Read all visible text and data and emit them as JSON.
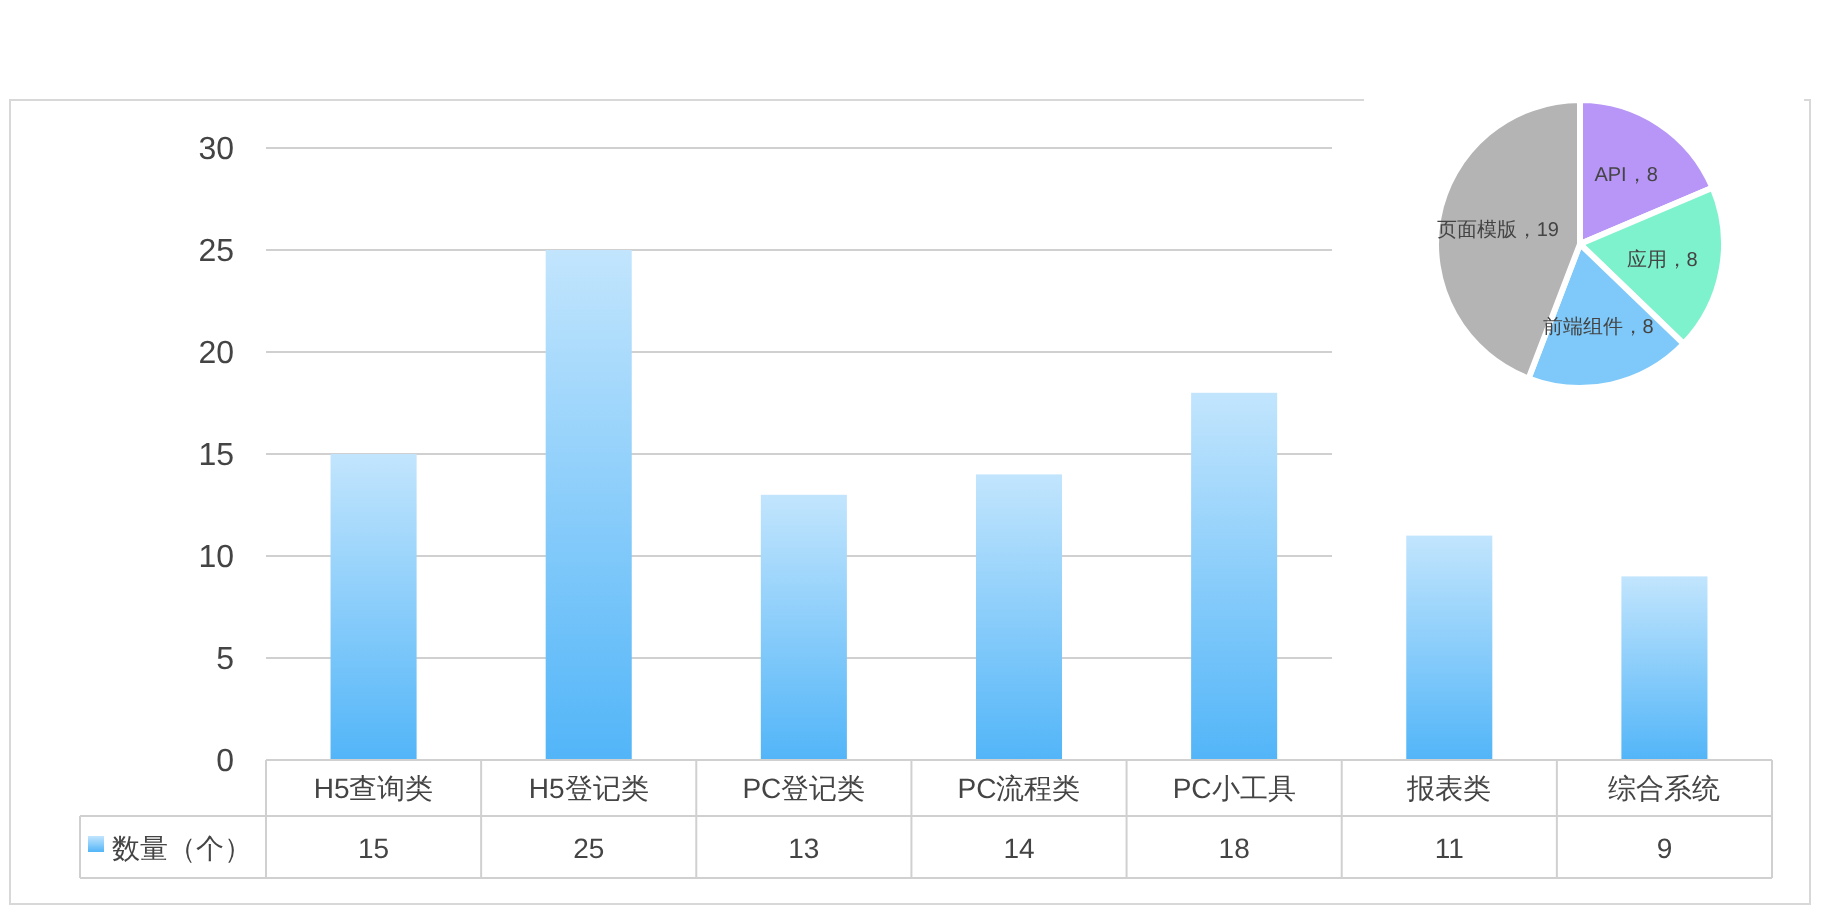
{
  "chart_data": [
    {
      "type": "bar",
      "categories": [
        "H5查询类",
        "H5登记类",
        "PC登记类",
        "PC流程类",
        "PC小工具",
        "报表类",
        "综合系统"
      ],
      "series": [
        {
          "name": "数量（个）",
          "color": "#52b5f8",
          "values": [
            15,
            25,
            13,
            14,
            18,
            11,
            9
          ]
        }
      ],
      "ylim": [
        0,
        30
      ],
      "yticks": [
        0,
        5,
        10,
        15,
        20,
        25,
        30
      ],
      "grid": "y",
      "legend": "bottom",
      "data_labels": true
    },
    {
      "type": "pie",
      "categories": [
        "API",
        "应用",
        "前端组件",
        "页面模版"
      ],
      "values": [
        8,
        8,
        8,
        19
      ],
      "colors": [
        "#b796f7",
        "#7ef2cc",
        "#7ec9f9",
        "#b4b4b4"
      ],
      "value_labels": [
        "，8",
        "，8",
        "，8",
        "，19"
      ]
    }
  ]
}
